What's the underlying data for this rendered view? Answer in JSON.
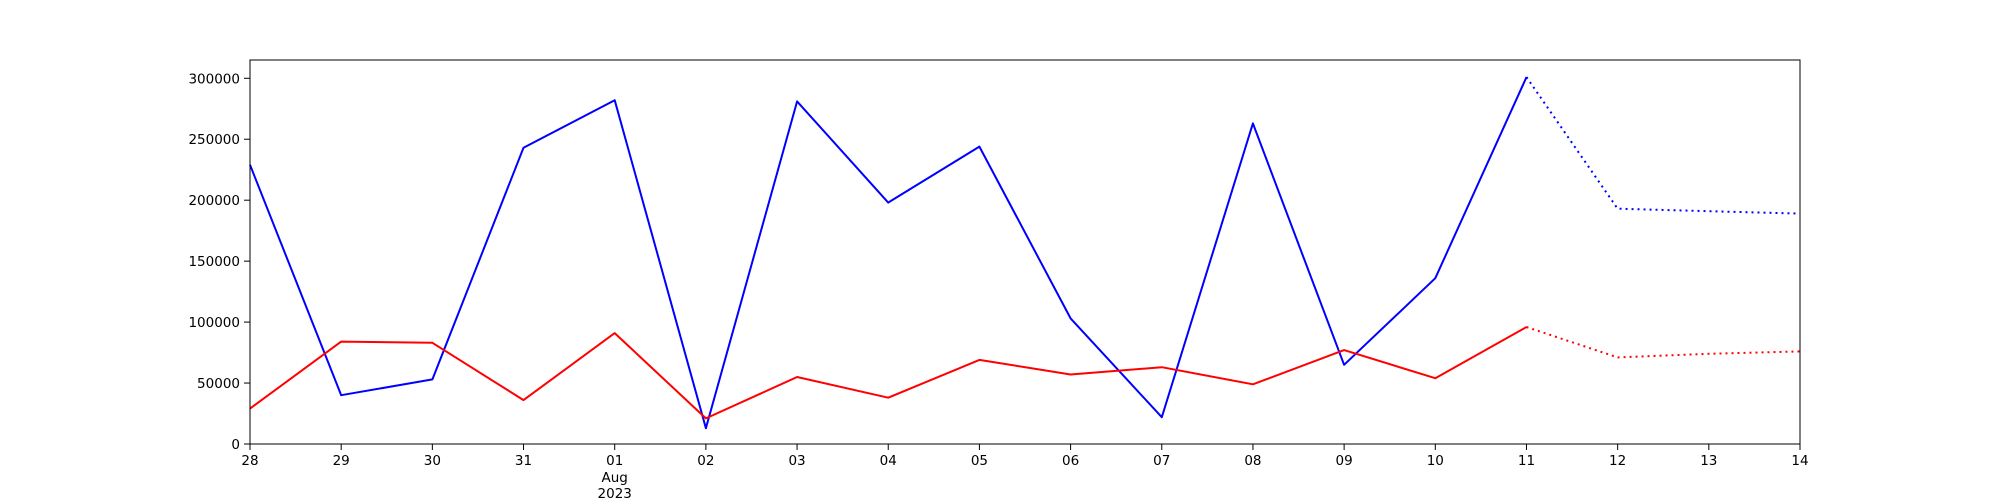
{
  "chart_data": {
    "type": "line",
    "x": [
      "2023-07-28",
      "2023-07-29",
      "2023-07-30",
      "2023-07-31",
      "2023-08-01",
      "2023-08-02",
      "2023-08-03",
      "2023-08-04",
      "2023-08-05",
      "2023-08-06",
      "2023-08-07",
      "2023-08-08",
      "2023-08-09",
      "2023-08-10",
      "2023-08-11",
      "2023-08-12",
      "2023-08-13",
      "2023-08-14"
    ],
    "x_tick_labels": [
      "28",
      "29",
      "30",
      "31",
      "01",
      "02",
      "03",
      "04",
      "05",
      "06",
      "07",
      "08",
      "09",
      "10",
      "11",
      "12",
      "13",
      "14"
    ],
    "x_tick_sublabels": {
      "01": [
        "Aug",
        "2023"
      ]
    },
    "ylim": [
      0,
      315000
    ],
    "y_ticks": [
      0,
      50000,
      100000,
      150000,
      200000,
      250000,
      300000
    ],
    "y_tick_labels": [
      "0",
      "50000",
      "100000",
      "150000",
      "200000",
      "250000",
      "300000"
    ],
    "grid": false,
    "series": [
      {
        "color": "#0000ff",
        "style": "solid",
        "x": [
          "2023-07-28",
          "2023-07-29",
          "2023-07-30",
          "2023-07-31",
          "2023-08-01",
          "2023-08-02",
          "2023-08-03",
          "2023-08-04",
          "2023-08-05",
          "2023-08-06",
          "2023-08-07",
          "2023-08-08",
          "2023-08-09",
          "2023-08-10",
          "2023-08-11"
        ],
        "values": [
          229000,
          40000,
          53000,
          243000,
          282000,
          13000,
          281000,
          198000,
          244000,
          103000,
          22000,
          263000,
          65000,
          136000,
          301000
        ]
      },
      {
        "color": "#0000ff",
        "style": "dotted",
        "x": [
          "2023-08-11",
          "2023-08-12",
          "2023-08-13",
          "2023-08-14"
        ],
        "values": [
          301000,
          193000,
          191000,
          189000
        ]
      },
      {
        "color": "#ff0000",
        "style": "solid",
        "x": [
          "2023-07-28",
          "2023-07-29",
          "2023-07-30",
          "2023-07-31",
          "2023-08-01",
          "2023-08-02",
          "2023-08-03",
          "2023-08-04",
          "2023-08-05",
          "2023-08-06",
          "2023-08-07",
          "2023-08-08",
          "2023-08-09",
          "2023-08-10",
          "2023-08-11"
        ],
        "values": [
          29000,
          84000,
          83000,
          36000,
          91000,
          21000,
          55000,
          38000,
          69000,
          57000,
          63000,
          49000,
          77000,
          54000,
          96000
        ]
      },
      {
        "color": "#ff0000",
        "style": "dotted",
        "x": [
          "2023-08-11",
          "2023-08-12",
          "2023-08-13",
          "2023-08-14"
        ],
        "values": [
          96000,
          71000,
          74000,
          76000
        ]
      }
    ]
  }
}
